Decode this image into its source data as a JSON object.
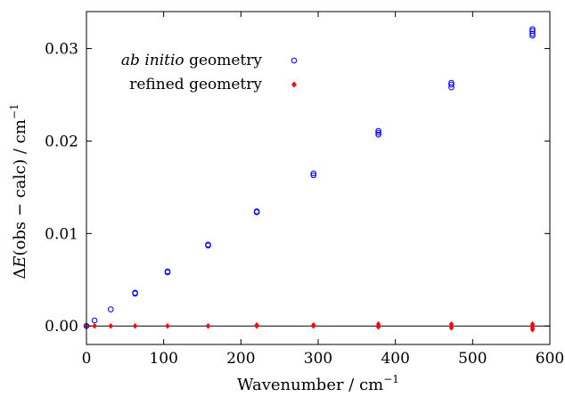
{
  "chart_data": {
    "type": "scatter",
    "xlabel": "Wavenumber / cm−1",
    "xlabel_text": "Wavenumber / cm",
    "xlabel_sup": "−1",
    "ylabel_prefix": "Δ",
    "ylabel_italic": "E",
    "ylabel_mid": "(obs − calc) / cm",
    "ylabel_sup": "−1",
    "xlim": [
      0,
      600
    ],
    "ylim": [
      -0.002,
      0.034
    ],
    "x_ticks": [
      0,
      100,
      200,
      300,
      400,
      500,
      600
    ],
    "x_tick_labels": [
      "0",
      "100",
      "200",
      "300",
      "400",
      "500",
      "600"
    ],
    "y_ticks": [
      0.0,
      0.01,
      0.02,
      0.03
    ],
    "y_tick_labels": [
      "0.00",
      "0.01",
      "0.02",
      "0.03"
    ],
    "zero_line": true,
    "grid": false,
    "legend_position": "top-left",
    "series": [
      {
        "name": "ab initio geometry",
        "name_italic": "ab initio",
        "name_rest": " geometry",
        "marker": "open-circle",
        "color": "#0000ff",
        "points": [
          [
            0,
            0.0
          ],
          [
            10.5,
            0.0006
          ],
          [
            31.5,
            0.0018
          ],
          [
            63,
            0.0036
          ],
          [
            63,
            0.0035
          ],
          [
            105,
            0.0059
          ],
          [
            105,
            0.0058
          ],
          [
            157.5,
            0.0088
          ],
          [
            157.5,
            0.0087
          ],
          [
            220.5,
            0.0124
          ],
          [
            220.5,
            0.0123
          ],
          [
            294,
            0.0165
          ],
          [
            294,
            0.0163
          ],
          [
            378,
            0.0211
          ],
          [
            378,
            0.0209
          ],
          [
            378,
            0.0207
          ],
          [
            472.5,
            0.0263
          ],
          [
            472.5,
            0.0261
          ],
          [
            472.5,
            0.0258
          ],
          [
            577.5,
            0.0321
          ],
          [
            577.5,
            0.0319
          ],
          [
            577.5,
            0.0316
          ],
          [
            577.5,
            0.0314
          ]
        ]
      },
      {
        "name": "refined geometry",
        "marker": "diamond",
        "color": "#ff0000",
        "points": [
          [
            0,
            0.0
          ],
          [
            10.5,
            0.0
          ],
          [
            31.5,
            0.0
          ],
          [
            63,
            0.0
          ],
          [
            105,
            0.0
          ],
          [
            157.5,
            0.0
          ],
          [
            220.5,
            0.0001
          ],
          [
            220.5,
            0.0
          ],
          [
            294,
            0.0001
          ],
          [
            294,
            0.0
          ],
          [
            378,
            0.0002
          ],
          [
            378,
            0.0
          ],
          [
            378,
            -0.0001
          ],
          [
            472.5,
            0.0002
          ],
          [
            472.5,
            0.0
          ],
          [
            472.5,
            -0.0002
          ],
          [
            577.5,
            0.0002
          ],
          [
            577.5,
            0.0
          ],
          [
            577.5,
            -0.0002
          ],
          [
            577.5,
            -0.0004
          ]
        ]
      }
    ]
  }
}
